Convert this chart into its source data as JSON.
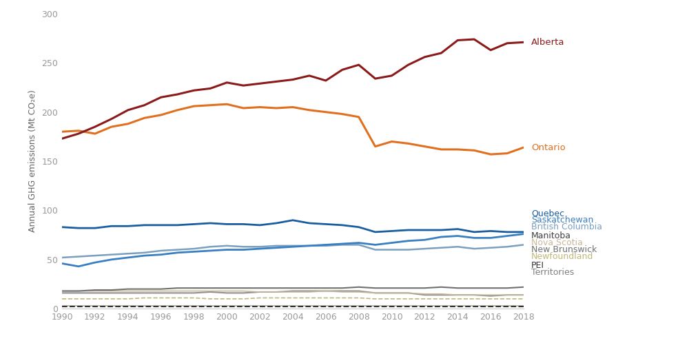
{
  "years": [
    1990,
    1991,
    1992,
    1993,
    1994,
    1995,
    1996,
    1997,
    1998,
    1999,
    2000,
    2001,
    2002,
    2003,
    2004,
    2005,
    2006,
    2007,
    2008,
    2009,
    2010,
    2011,
    2012,
    2013,
    2014,
    2015,
    2016,
    2017,
    2018
  ],
  "Alberta": [
    173,
    178,
    185,
    193,
    202,
    207,
    215,
    218,
    222,
    224,
    230,
    227,
    229,
    231,
    233,
    237,
    232,
    243,
    248,
    234,
    237,
    248,
    256,
    260,
    273,
    274,
    263,
    270,
    271
  ],
  "Ontario": [
    180,
    181,
    178,
    185,
    188,
    194,
    197,
    202,
    206,
    207,
    208,
    204,
    205,
    204,
    205,
    202,
    200,
    198,
    195,
    165,
    170,
    168,
    165,
    162,
    162,
    161,
    157,
    158,
    164
  ],
  "Quebec": [
    83,
    82,
    82,
    84,
    84,
    85,
    85,
    85,
    86,
    87,
    86,
    86,
    85,
    87,
    90,
    87,
    86,
    85,
    83,
    78,
    79,
    80,
    80,
    80,
    81,
    78,
    79,
    78,
    78
  ],
  "Saskatchewan": [
    46,
    43,
    47,
    50,
    52,
    54,
    55,
    57,
    58,
    59,
    60,
    60,
    61,
    62,
    63,
    64,
    65,
    66,
    67,
    65,
    67,
    69,
    70,
    73,
    74,
    72,
    72,
    74,
    76
  ],
  "British_Columbia": [
    52,
    53,
    54,
    55,
    56,
    57,
    59,
    60,
    61,
    63,
    64,
    63,
    63,
    64,
    64,
    64,
    64,
    65,
    65,
    60,
    60,
    60,
    61,
    62,
    63,
    61,
    62,
    63,
    65
  ],
  "Manitoba": [
    18,
    18,
    19,
    19,
    20,
    20,
    20,
    21,
    21,
    21,
    21,
    21,
    21,
    21,
    21,
    21,
    21,
    21,
    22,
    21,
    21,
    21,
    21,
    22,
    21,
    21,
    21,
    21,
    22
  ],
  "Nova_Scotia": [
    18,
    18,
    18,
    18,
    18,
    18,
    18,
    18,
    18,
    18,
    18,
    18,
    17,
    17,
    17,
    17,
    18,
    17,
    17,
    16,
    16,
    16,
    15,
    15,
    14,
    14,
    14,
    14,
    14
  ],
  "New_Brunswick": [
    16,
    16,
    16,
    16,
    16,
    16,
    16,
    16,
    16,
    17,
    16,
    16,
    17,
    17,
    18,
    18,
    18,
    18,
    18,
    16,
    16,
    16,
    14,
    14,
    14,
    14,
    13,
    14,
    14
  ],
  "Newfoundland": [
    10,
    10,
    10,
    10,
    10,
    11,
    11,
    11,
    11,
    10,
    10,
    10,
    11,
    11,
    11,
    11,
    11,
    11,
    11,
    10,
    10,
    10,
    10,
    10,
    10,
    10,
    10,
    10,
    10
  ],
  "PEI": [
    2,
    2,
    2,
    2,
    2,
    2,
    2,
    2,
    2,
    2,
    2,
    2,
    2,
    2,
    2,
    2,
    2,
    2,
    2,
    2,
    2,
    2,
    2,
    2,
    2,
    2,
    2,
    2,
    2
  ],
  "Territories": [
    3,
    3,
    3,
    3,
    3,
    3,
    3,
    3,
    3,
    3,
    3,
    3,
    3,
    3,
    3,
    3,
    3,
    3,
    3,
    3,
    3,
    3,
    3,
    3,
    3,
    3,
    3,
    3,
    3
  ],
  "colors": {
    "Alberta": "#8B1A1A",
    "Ontario": "#E07020",
    "Quebec": "#1A5EA0",
    "Saskatchewan": "#3A7FC1",
    "British_Columbia": "#7A9FBF",
    "Manitoba": "#707070",
    "Nova_Scotia": "#C8B89A",
    "New_Brunswick": "#909090",
    "Newfoundland": "#C0B878",
    "PEI": "#333333",
    "Territories": "#B8B0A0"
  },
  "linestyles": {
    "Alberta": "-",
    "Ontario": "-",
    "Quebec": "-",
    "Saskatchewan": "-",
    "British_Columbia": "-",
    "Manitoba": "-",
    "Nova_Scotia": "-",
    "New_Brunswick": "-",
    "Newfoundland": "--",
    "PEI": "--",
    "Territories": "-"
  },
  "linewidths": {
    "Alberta": 2.2,
    "Ontario": 2.2,
    "Quebec": 2.0,
    "Saskatchewan": 2.0,
    "British_Columbia": 1.8,
    "Manitoba": 1.5,
    "Nova_Scotia": 1.2,
    "New_Brunswick": 1.5,
    "Newfoundland": 1.2,
    "PEI": 1.5,
    "Territories": 1.2
  },
  "label_display": {
    "Alberta": "Alberta",
    "Ontario": "Ontario",
    "Quebec": "Quebec",
    "Saskatchewan": "Saskatchewan",
    "British_Columbia": "British Columbia",
    "Manitoba": "Manitoba",
    "Nova_Scotia": "Nova Scotia",
    "New_Brunswick": "New Brunswick",
    "Newfoundland": "Newfoundland",
    "PEI": "PEI",
    "Territories": "Territories"
  },
  "label_colors": {
    "Alberta": "#8B1A1A",
    "Ontario": "#E07020",
    "Quebec": "#1A5EA0",
    "Saskatchewan": "#3A7FC1",
    "British_Columbia": "#7A9FBF",
    "Manitoba": "#404040",
    "Nova_Scotia": "#C8B89A",
    "New_Brunswick": "#707070",
    "Newfoundland": "#C0B878",
    "PEI": "#333333",
    "Territories": "#808080"
  },
  "legend_y_positions": {
    "Quebec": 97,
    "Saskatchewan": 90,
    "British_Columbia": 83,
    "Manitoba": 74,
    "Nova_Scotia": 67,
    "New_Brunswick": 60,
    "Newfoundland": 53,
    "PEI": 44,
    "Territories": 37
  },
  "ylabel": "Annual GHG emissions (Mt CO₂e)",
  "ylim": [
    0,
    300
  ],
  "yticks": [
    0,
    50,
    100,
    150,
    200,
    250,
    300
  ],
  "xlim": [
    1990,
    2018
  ],
  "xticks": [
    1990,
    1992,
    1994,
    1996,
    1998,
    2000,
    2002,
    2004,
    2006,
    2008,
    2010,
    2012,
    2014,
    2016,
    2018
  ]
}
